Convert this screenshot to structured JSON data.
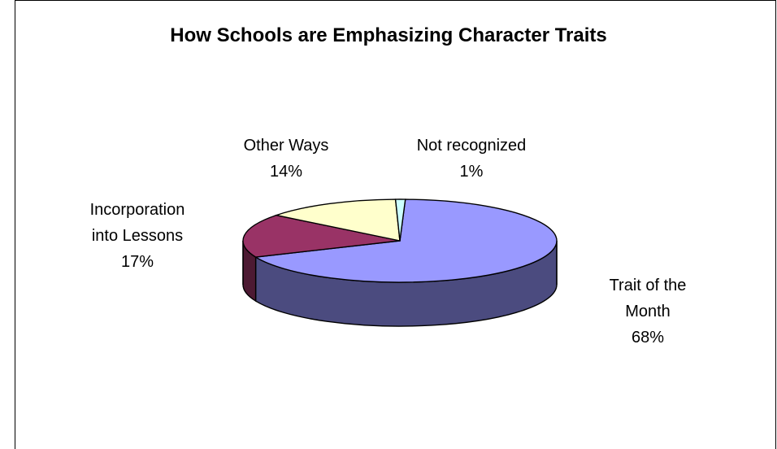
{
  "chart_data": {
    "type": "pie",
    "title": "How Schools are Emphasizing Character Traits",
    "three_d": true,
    "slices": [
      {
        "label": [
          "Trait of the",
          "Month"
        ],
        "percent_label": "68%",
        "value": 68,
        "color": "#9999FF",
        "side_color": "#4B4B7F"
      },
      {
        "label": [
          "Incorporation",
          "into Lessons"
        ],
        "percent_label": "17%",
        "value": 17,
        "color": "#993366",
        "side_color": "#4D1A33"
      },
      {
        "label": [
          "Other Ways"
        ],
        "percent_label": "14%",
        "value": 14,
        "color": "#FFFFCC",
        "side_color": "#7F7F66"
      },
      {
        "label": [
          "Not recognized"
        ],
        "percent_label": "1%",
        "value": 1,
        "color": "#CCFFFF",
        "side_color": "#667F7F"
      }
    ]
  }
}
